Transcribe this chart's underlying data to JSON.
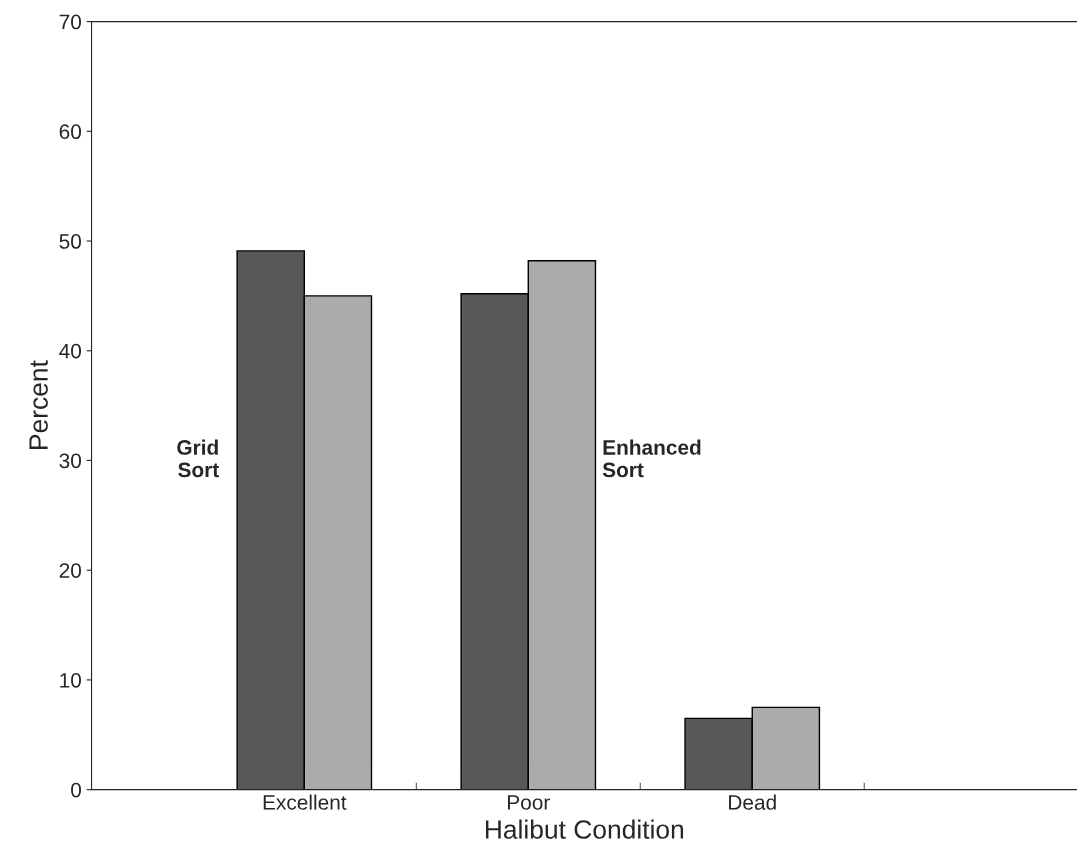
{
  "chart_data": {
    "type": "bar",
    "xlabel": "Halibut Condition",
    "ylabel": "Percent",
    "categories": [
      "Excellent",
      "Poor",
      "Dead"
    ],
    "series": [
      {
        "name": "Grid Sort",
        "color": "#585858",
        "values": [
          49.1,
          45.2,
          6.5
        ]
      },
      {
        "name": "Enhanced Sort",
        "color": "#ababab",
        "values": [
          45.0,
          48.2,
          7.5
        ]
      }
    ],
    "ylim": [
      0,
      70
    ],
    "yticks": [
      0,
      10,
      20,
      30,
      40,
      50,
      60,
      70
    ],
    "grid": false,
    "legend": false
  }
}
